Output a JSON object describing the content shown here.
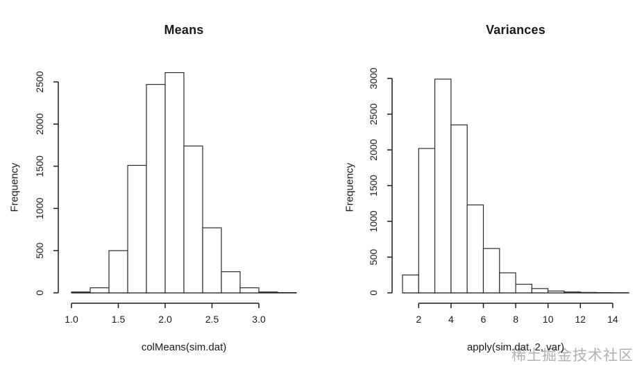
{
  "page": {
    "background": "#ffffff"
  },
  "watermark": {
    "text": "稀土掘金技术社区",
    "color": "#b0b0b0"
  },
  "chart_data": [
    {
      "type": "bar",
      "subtype": "histogram",
      "title": "Means",
      "xlabel": "colMeans(sim.dat)",
      "ylabel": "Frequency",
      "bin_start": 1.0,
      "bin_width": 0.2,
      "counts": [
        10,
        60,
        500,
        1510,
        2470,
        2610,
        1740,
        770,
        250,
        60,
        10,
        3
      ],
      "xticks": [
        1.0,
        1.5,
        2.0,
        2.5,
        3.0
      ],
      "xtick_labels": [
        "1.0",
        "1.5",
        "2.0",
        "2.5",
        "3.0"
      ],
      "yticks": [
        0,
        500,
        1000,
        1500,
        2000,
        2500
      ],
      "xlim": [
        1.0,
        3.4
      ],
      "ylim": [
        0,
        2700
      ],
      "grid": false,
      "legend": false,
      "bar_fill": "#ffffff",
      "bar_stroke": "#2b2b2b"
    },
    {
      "type": "bar",
      "subtype": "histogram",
      "title": "Variances",
      "xlabel": "apply(sim.dat, 2, var)",
      "ylabel": "Frequency",
      "bin_start": 1,
      "bin_width": 1,
      "counts": [
        250,
        2020,
        2990,
        2350,
        1230,
        620,
        280,
        120,
        60,
        25,
        12,
        6,
        3,
        1
      ],
      "xticks": [
        2,
        4,
        6,
        8,
        10,
        12,
        14
      ],
      "xtick_labels": [
        "2",
        "4",
        "6",
        "8",
        "10",
        "12",
        "14"
      ],
      "yticks": [
        0,
        500,
        1000,
        1500,
        2000,
        2500,
        3000
      ],
      "xlim": [
        1,
        15
      ],
      "ylim": [
        0,
        3100
      ],
      "grid": false,
      "legend": false,
      "bar_fill": "#ffffff",
      "bar_stroke": "#2b2b2b"
    }
  ]
}
